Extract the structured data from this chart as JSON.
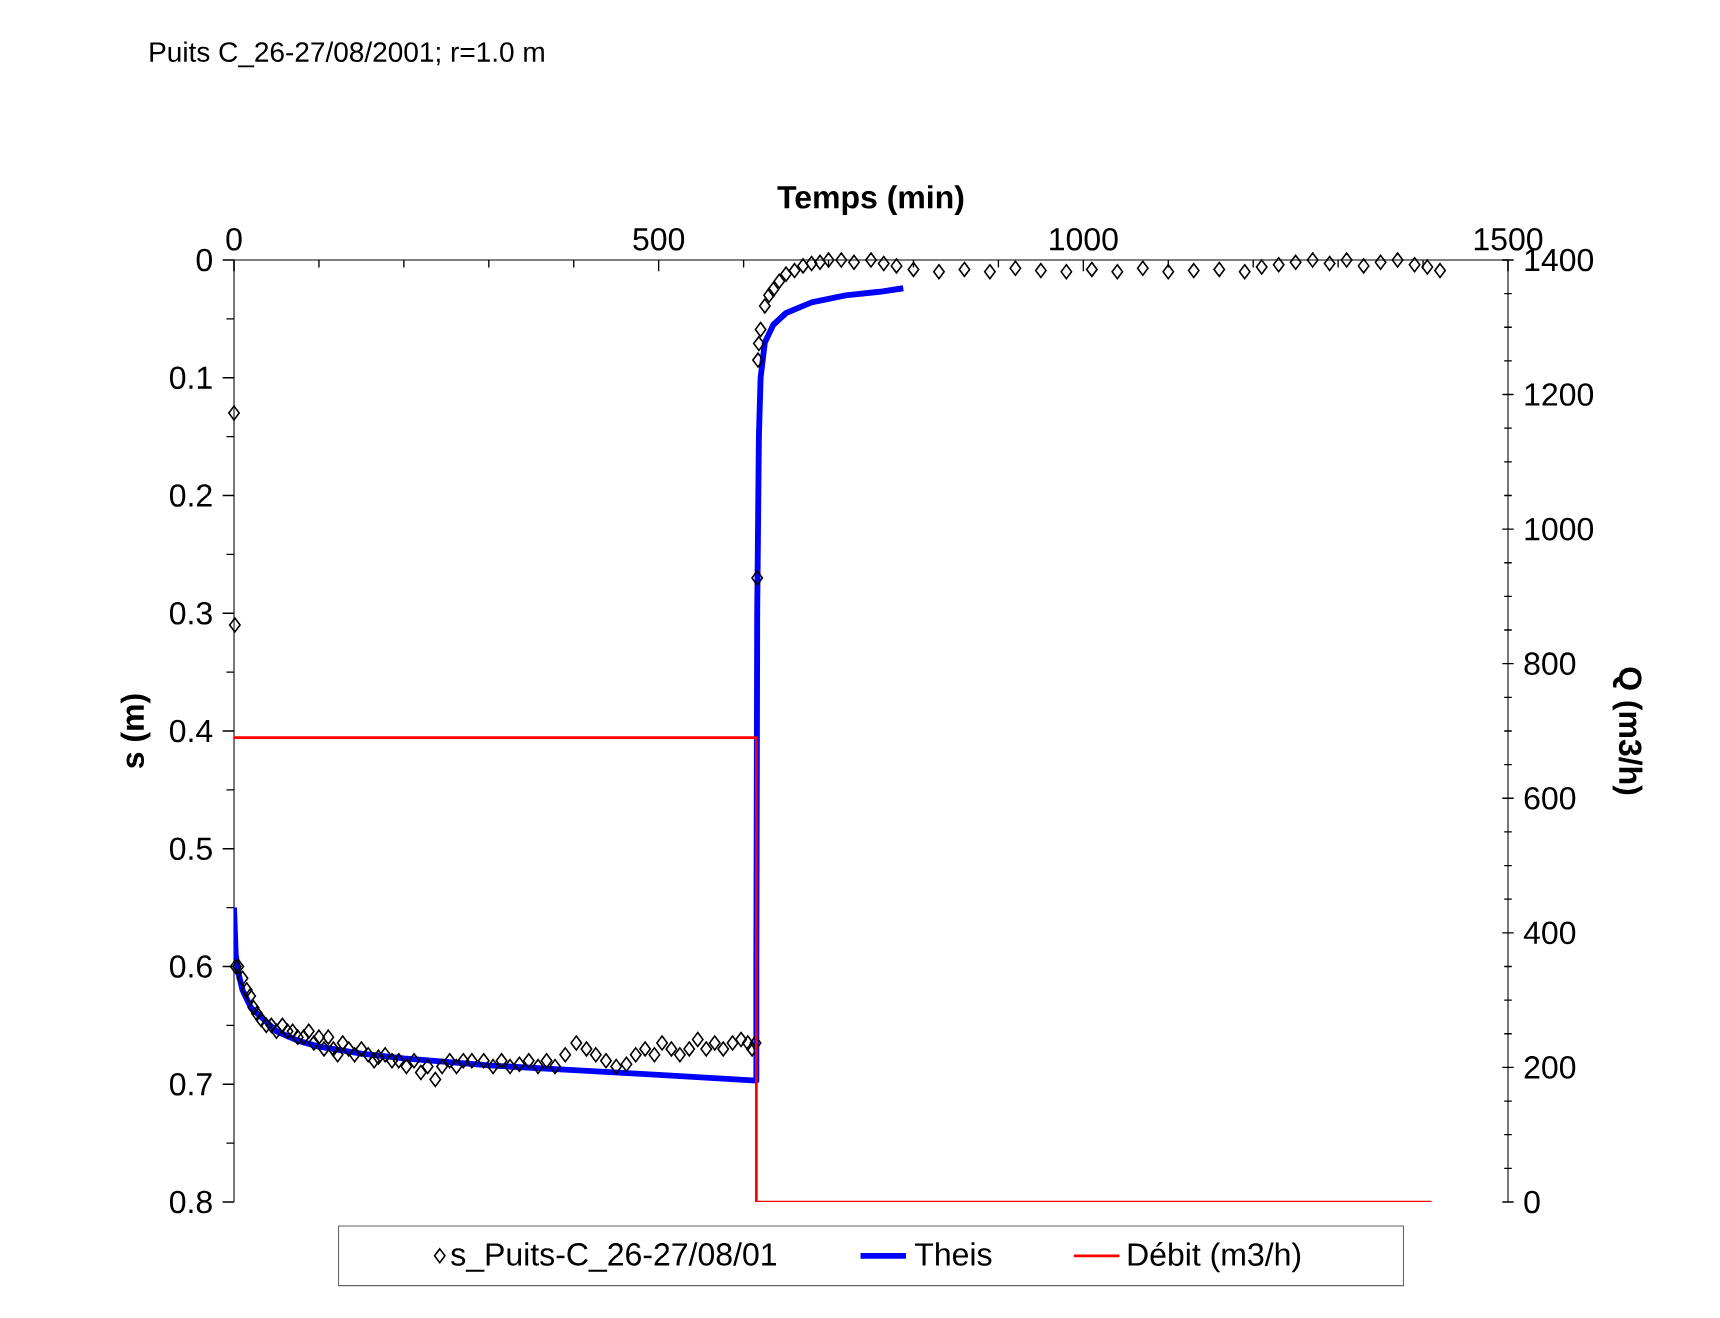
{
  "chart_data": {
    "type": "line",
    "title": "Puits C_26-27/08/2001; r=1.0 m",
    "xlabel": "Temps (min)",
    "ylabel": "s (m)",
    "y2label": "Q (m3/h)",
    "xlim": [
      0,
      1500
    ],
    "xticks": [
      0,
      500,
      1000,
      1500
    ],
    "ylim": [
      0.8,
      0
    ],
    "yticks": [
      0,
      0.1,
      0.2,
      0.3,
      0.4,
      0.5,
      0.6,
      0.7,
      0.8
    ],
    "y2lim": [
      0,
      1400
    ],
    "y2ticks": [
      0,
      200,
      400,
      600,
      800,
      1000,
      1200,
      1400
    ],
    "legend": "bottom",
    "series": [
      {
        "name": "s_Puits-C_26-27/08/01",
        "type": "scatter",
        "marker": "diamond",
        "color": "#000000",
        "x": [
          0,
          1,
          2,
          5,
          10,
          15,
          19,
          23,
          27,
          32,
          38,
          44,
          50,
          57,
          63,
          69,
          75,
          82,
          88,
          94,
          100,
          106,
          111,
          117,
          122,
          128,
          135,
          142,
          150,
          158,
          165,
          170,
          178,
          186,
          194,
          203,
          212,
          220,
          228,
          237,
          245,
          254,
          262,
          270,
          280,
          294,
          305,
          315,
          325,
          336,
          347,
          358,
          368,
          378,
          390,
          403,
          415,
          426,
          438,
          450,
          462,
          473,
          484,
          495,
          504,
          515,
          525,
          536,
          546,
          556,
          566,
          576,
          587,
          597,
          605,
          610,
          614,
          616,
          617,
          618,
          620,
          625,
          630,
          635,
          642,
          650,
          660,
          670,
          680,
          690,
          700,
          715,
          730,
          750,
          765,
          780,
          800,
          830,
          860,
          890,
          920,
          950,
          980,
          1010,
          1040,
          1070,
          1100,
          1130,
          1160,
          1190,
          1210,
          1230,
          1250,
          1270,
          1290,
          1310,
          1330,
          1350,
          1370,
          1390,
          1405,
          1420
        ],
        "values": [
          0.13,
          0.31,
          0.6,
          0.6,
          0.61,
          0.62,
          0.625,
          0.635,
          0.64,
          0.645,
          0.65,
          0.65,
          0.655,
          0.65,
          0.655,
          0.655,
          0.66,
          0.66,
          0.655,
          0.665,
          0.66,
          0.67,
          0.66,
          0.67,
          0.675,
          0.665,
          0.67,
          0.675,
          0.67,
          0.675,
          0.68,
          0.677,
          0.675,
          0.68,
          0.68,
          0.685,
          0.68,
          0.69,
          0.685,
          0.696,
          0.685,
          0.68,
          0.685,
          0.68,
          0.68,
          0.68,
          0.685,
          0.68,
          0.685,
          0.683,
          0.68,
          0.685,
          0.68,
          0.685,
          0.675,
          0.665,
          0.67,
          0.675,
          0.68,
          0.685,
          0.683,
          0.675,
          0.67,
          0.675,
          0.665,
          0.67,
          0.675,
          0.67,
          0.662,
          0.67,
          0.665,
          0.67,
          0.665,
          0.662,
          0.665,
          0.67,
          0.665,
          0.27,
          0.085,
          0.071,
          0.059,
          0.039,
          0.03,
          0.025,
          0.018,
          0.012,
          0.009,
          0.005,
          0.003,
          0.002,
          0.0,
          0.0,
          0.002,
          0.0,
          0.003,
          0.005,
          0.008,
          0.01,
          0.008,
          0.01,
          0.007,
          0.009,
          0.01,
          0.008,
          0.01,
          0.007,
          0.01,
          0.009,
          0.008,
          0.01,
          0.006,
          0.004,
          0.002,
          0.0,
          0.003,
          0.0,
          0.005,
          0.002,
          0.0,
          0.004,
          0.006,
          0.009
        ]
      },
      {
        "name": "Theis",
        "color": "#0000ff",
        "x": [
          0,
          2,
          5,
          10,
          20,
          35,
          50,
          75,
          100,
          150,
          200,
          300,
          400,
          500,
          615,
          615,
          616,
          618,
          620,
          625,
          635,
          650,
          680,
          720,
          760,
          788
        ],
        "values": [
          0.55,
          0.59,
          0.605,
          0.62,
          0.635,
          0.645,
          0.655,
          0.663,
          0.668,
          0.674,
          0.678,
          0.684,
          0.688,
          0.692,
          0.697,
          0.6,
          0.3,
          0.15,
          0.1,
          0.07,
          0.055,
          0.045,
          0.036,
          0.03,
          0.027,
          0.024
        ]
      },
      {
        "name": "Débit (m3/h)",
        "axis": "y2",
        "color": "#ff0000",
        "x": [
          0,
          615,
          615,
          1410
        ],
        "values": [
          690,
          690,
          0,
          0
        ]
      }
    ]
  }
}
